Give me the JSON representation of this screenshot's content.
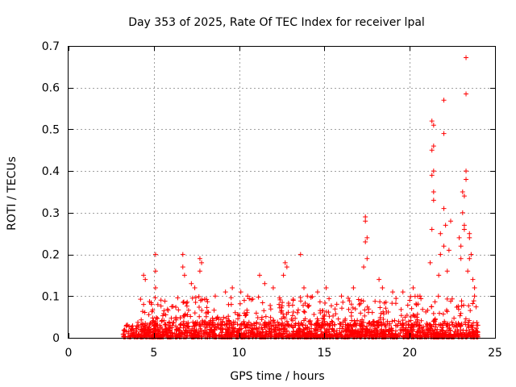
{
  "chart_data": {
    "type": "scatter",
    "title": "Day 353 of 2025, Rate Of TEC Index for receiver lpal",
    "xlabel": "GPS time / hours",
    "ylabel": "ROTI / TECUs",
    "xlim": [
      0,
      25
    ],
    "ylim": [
      0,
      0.7
    ],
    "xticks": [
      0,
      5,
      10,
      15,
      20,
      25
    ],
    "yticks": [
      0,
      0.1,
      0.2,
      0.3,
      0.4,
      0.5,
      0.6,
      0.7
    ],
    "xtick_labels": [
      "0",
      "5",
      "10",
      "15",
      "20",
      "25"
    ],
    "ytick_labels": [
      "0",
      "0.1",
      "0.2",
      "0.3",
      "0.4",
      "0.5",
      "0.6",
      "0.7"
    ],
    "grid": true,
    "marker": "+",
    "color": "#ff0000",
    "data_range_hours": [
      3.2,
      24.0
    ],
    "background_level": 0.03,
    "highlighted_points": [
      {
        "x": 4.4,
        "y": 0.15
      },
      {
        "x": 4.5,
        "y": 0.14
      },
      {
        "x": 4.4,
        "y": 0.08
      },
      {
        "x": 5.1,
        "y": 0.2
      },
      {
        "x": 5.1,
        "y": 0.16
      },
      {
        "x": 5.1,
        "y": 0.12
      },
      {
        "x": 5.6,
        "y": 0.065
      },
      {
        "x": 5.7,
        "y": 0.055
      },
      {
        "x": 6.7,
        "y": 0.2
      },
      {
        "x": 6.7,
        "y": 0.17
      },
      {
        "x": 6.8,
        "y": 0.15
      },
      {
        "x": 7.2,
        "y": 0.13
      },
      {
        "x": 7.4,
        "y": 0.12
      },
      {
        "x": 7.7,
        "y": 0.19
      },
      {
        "x": 7.8,
        "y": 0.18
      },
      {
        "x": 7.7,
        "y": 0.16
      },
      {
        "x": 8.6,
        "y": 0.1
      },
      {
        "x": 9.2,
        "y": 0.11
      },
      {
        "x": 9.6,
        "y": 0.12
      },
      {
        "x": 10.1,
        "y": 0.11
      },
      {
        "x": 10.5,
        "y": 0.1
      },
      {
        "x": 11.2,
        "y": 0.15
      },
      {
        "x": 11.5,
        "y": 0.13
      },
      {
        "x": 12.0,
        "y": 0.12
      },
      {
        "x": 12.7,
        "y": 0.18
      },
      {
        "x": 12.8,
        "y": 0.17
      },
      {
        "x": 12.6,
        "y": 0.15
      },
      {
        "x": 13.6,
        "y": 0.2
      },
      {
        "x": 13.8,
        "y": 0.12
      },
      {
        "x": 14.0,
        "y": 0.1
      },
      {
        "x": 14.6,
        "y": 0.11
      },
      {
        "x": 15.1,
        "y": 0.12
      },
      {
        "x": 16.0,
        "y": 0.1
      },
      {
        "x": 16.7,
        "y": 0.12
      },
      {
        "x": 17.4,
        "y": 0.29
      },
      {
        "x": 17.4,
        "y": 0.28
      },
      {
        "x": 17.5,
        "y": 0.24
      },
      {
        "x": 17.4,
        "y": 0.23
      },
      {
        "x": 17.5,
        "y": 0.19
      },
      {
        "x": 17.3,
        "y": 0.17
      },
      {
        "x": 18.2,
        "y": 0.14
      },
      {
        "x": 18.4,
        "y": 0.12
      },
      {
        "x": 19.0,
        "y": 0.11
      },
      {
        "x": 19.6,
        "y": 0.11
      },
      {
        "x": 20.2,
        "y": 0.12
      },
      {
        "x": 20.6,
        "y": 0.1
      },
      {
        "x": 21.2,
        "y": 0.18
      },
      {
        "x": 21.3,
        "y": 0.26
      },
      {
        "x": 21.4,
        "y": 0.33
      },
      {
        "x": 21.4,
        "y": 0.35
      },
      {
        "x": 21.3,
        "y": 0.39
      },
      {
        "x": 21.4,
        "y": 0.4
      },
      {
        "x": 21.3,
        "y": 0.45
      },
      {
        "x": 21.4,
        "y": 0.46
      },
      {
        "x": 21.4,
        "y": 0.51
      },
      {
        "x": 21.3,
        "y": 0.52
      },
      {
        "x": 21.8,
        "y": 0.25
      },
      {
        "x": 21.8,
        "y": 0.2
      },
      {
        "x": 21.7,
        "y": 0.15
      },
      {
        "x": 22.0,
        "y": 0.31
      },
      {
        "x": 22.0,
        "y": 0.49
      },
      {
        "x": 22.0,
        "y": 0.57
      },
      {
        "x": 22.1,
        "y": 0.27
      },
      {
        "x": 22.0,
        "y": 0.22
      },
      {
        "x": 22.2,
        "y": 0.16
      },
      {
        "x": 22.4,
        "y": 0.28
      },
      {
        "x": 22.3,
        "y": 0.21
      },
      {
        "x": 22.9,
        "y": 0.24
      },
      {
        "x": 23.0,
        "y": 0.22
      },
      {
        "x": 23.0,
        "y": 0.19
      },
      {
        "x": 23.1,
        "y": 0.35
      },
      {
        "x": 23.2,
        "y": 0.34
      },
      {
        "x": 23.1,
        "y": 0.3
      },
      {
        "x": 23.2,
        "y": 0.27
      },
      {
        "x": 23.2,
        "y": 0.26
      },
      {
        "x": 23.3,
        "y": 0.4
      },
      {
        "x": 23.3,
        "y": 0.38
      },
      {
        "x": 23.3,
        "y": 0.585
      },
      {
        "x": 23.3,
        "y": 0.672
      },
      {
        "x": 23.5,
        "y": 0.25
      },
      {
        "x": 23.5,
        "y": 0.24
      },
      {
        "x": 23.6,
        "y": 0.2
      },
      {
        "x": 23.5,
        "y": 0.19
      },
      {
        "x": 23.4,
        "y": 0.16
      },
      {
        "x": 23.7,
        "y": 0.14
      },
      {
        "x": 23.8,
        "y": 0.12
      },
      {
        "x": 23.8,
        "y": 0.1
      }
    ]
  }
}
